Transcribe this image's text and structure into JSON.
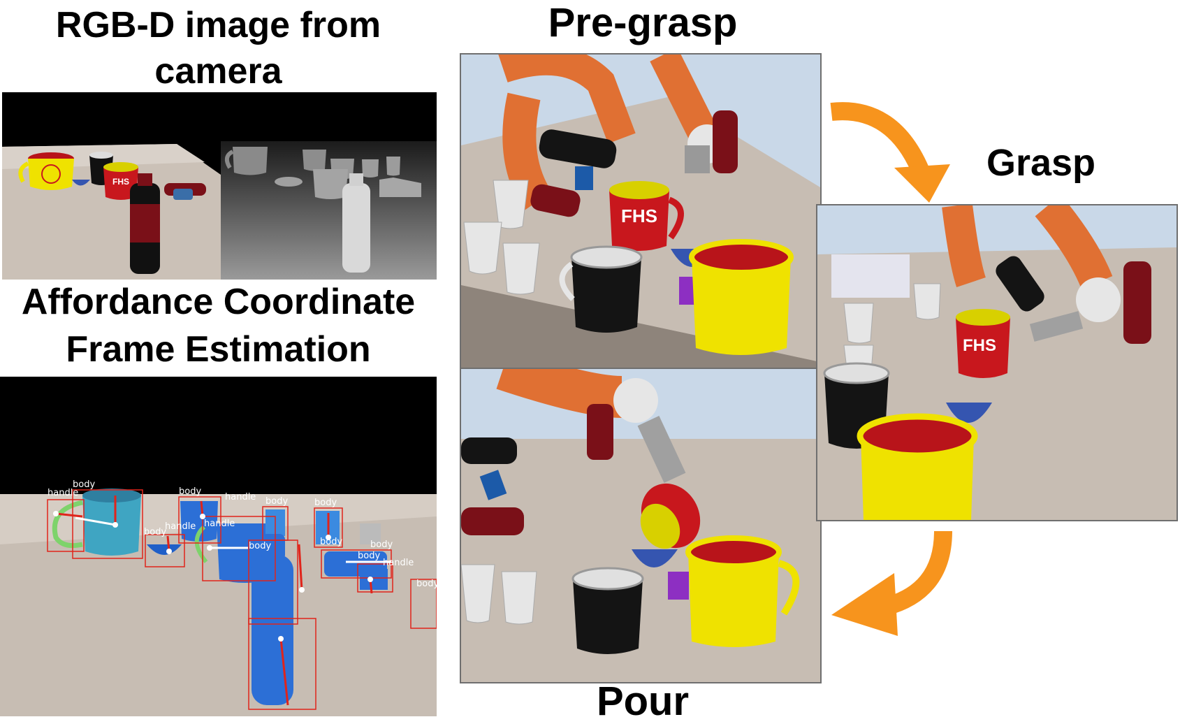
{
  "titles": {
    "rgbd_line1": "RGB-D image from",
    "rgbd_line2": "camera",
    "affordance_line1": "Affordance Coordinate",
    "affordance_line2": "Frame Estimation",
    "pregrasp": "Pre-grasp",
    "grasp": "Grasp",
    "pour": "Pour"
  },
  "mug_logo_text": "FHS",
  "detection_labels": {
    "handle": "handle",
    "body": "body"
  },
  "colors": {
    "arrow": "#f7941d",
    "robot_arm": "#e07033",
    "mug_red": "#c8171d",
    "mug_yellow": "#f2e600",
    "detection_box": "#e0241b",
    "segmentation_blue": "#2c6fd6",
    "sky": "#c9d8e8",
    "table": "#c7bdb3"
  },
  "icons": [
    "arrow-right-down-icon",
    "arrow-left-down-icon"
  ]
}
